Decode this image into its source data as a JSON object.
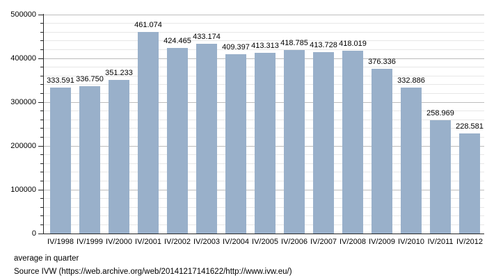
{
  "chart_data": {
    "type": "bar",
    "title": "",
    "xlabel": "",
    "ylabel": "",
    "categories": [
      "IV/1998",
      "IV/1999",
      "IV/2000",
      "IV/2001",
      "IV/2002",
      "IV/2003",
      "IV/2004",
      "IV/2005",
      "IV/2006",
      "IV/2007",
      "IV/2008",
      "IV/2009",
      "IV/2010",
      "IV/2011",
      "IV/2012"
    ],
    "values": [
      333591,
      336750,
      351233,
      461074,
      424465,
      433174,
      409397,
      413313,
      418785,
      413728,
      418019,
      376336,
      332886,
      258969,
      228581
    ],
    "value_labels": [
      "333.591",
      "336.750",
      "351.233",
      "461.074",
      "424.465",
      "433.174",
      "409.397",
      "413.313",
      "418.785",
      "413.728",
      "418.019",
      "376.336",
      "332.886",
      "258.969",
      "228.581"
    ],
    "ylim": [
      0,
      500000
    ],
    "y_major_step": 100000,
    "y_minor_step": 20000,
    "y_tick_labels": [
      "0",
      "100000",
      "200000",
      "300000",
      "400000",
      "500000"
    ],
    "grid": true,
    "legend_position": "none",
    "bar_color": "#99b0ca",
    "major_grid_color": "#bdbdbd",
    "minor_grid_color": "#e7e7e7",
    "axis_color": "#262626",
    "background_color": "#ffffff"
  },
  "footer": {
    "note": "average in quarter",
    "source": "Source IVW (https://web.archive.org/web/20141217141622/http://www.ivw.eu/)"
  }
}
